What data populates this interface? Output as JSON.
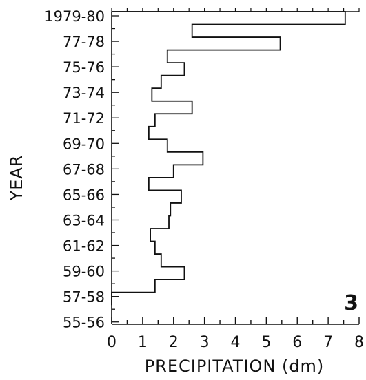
{
  "chart_data": {
    "type": "step",
    "orientation": "horizontal",
    "ylabel": "YEAR",
    "xlabel": "PRECIPITATION (dm)",
    "panel_label": "3",
    "xlim": [
      0,
      8
    ],
    "x_ticks": [
      "0",
      "1",
      "2",
      "3",
      "4",
      "5",
      "6",
      "7",
      "8"
    ],
    "y_tick_labels": [
      "1979-80",
      "77-78",
      "75-76",
      "73-74",
      "71-72",
      "69-70",
      "67-68",
      "65-66",
      "63-64",
      "61-62",
      "59-60",
      "57-58",
      "55-56"
    ],
    "grid": false,
    "series": [
      {
        "years": [
          "1979-80",
          "1978-79",
          "1977-78",
          "1976-77",
          "1975-76",
          "1974-75",
          "1973-74",
          "1972-73",
          "1971-72",
          "1970-71",
          "1969-70",
          "1968-69",
          "1967-68",
          "1966-67",
          "1965-66",
          "1964-65",
          "1963-64",
          "1962-63",
          "1961-62",
          "1960-61",
          "1959-60",
          "1958-59",
          "1957-58"
        ],
        "values": [
          7.55,
          2.6,
          5.45,
          1.8,
          2.35,
          1.6,
          1.3,
          2.6,
          1.4,
          1.2,
          1.8,
          2.95,
          2.0,
          1.2,
          2.25,
          1.9,
          1.85,
          1.25,
          1.4,
          1.6,
          2.35,
          1.4,
          0.0
        ]
      }
    ],
    "stroke_color": "#111111"
  }
}
